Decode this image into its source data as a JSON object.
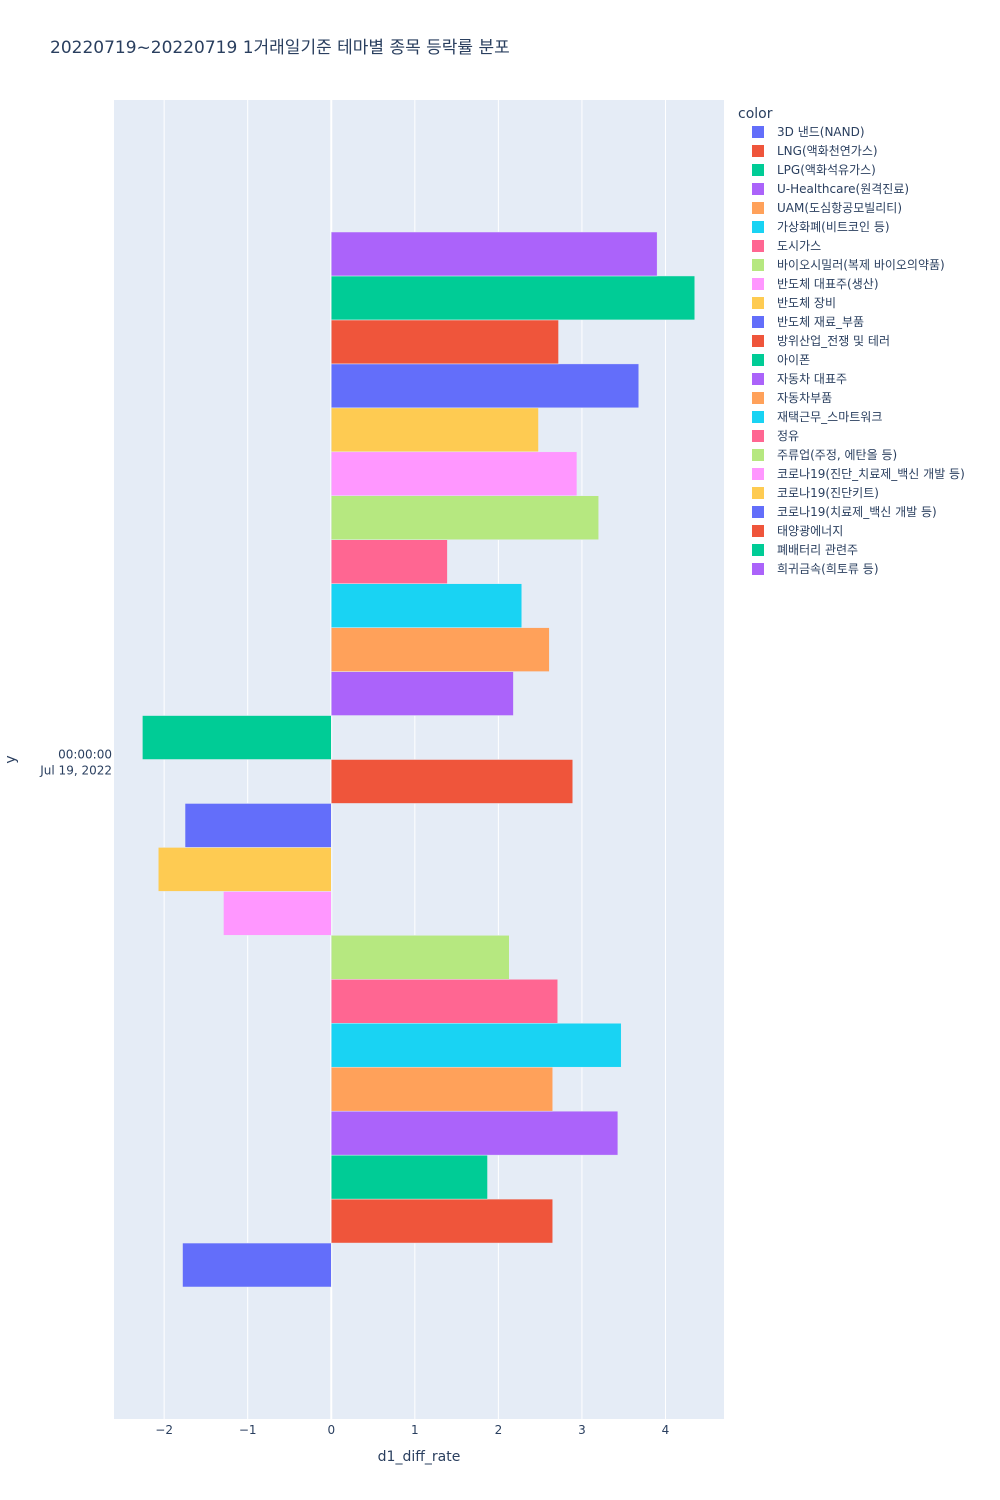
{
  "chart_data": {
    "type": "bar",
    "orientation": "horizontal",
    "title": "20220719~20220719 1거래일기준 테마별 종목 등락률 분포",
    "xlabel": "d1_diff_rate",
    "ylabel": "y",
    "xlim": [
      -2.6,
      4.7
    ],
    "xticks": [
      -2,
      -1,
      0,
      1,
      2,
      3,
      4
    ],
    "xtick_labels": [
      "−2",
      "−1",
      "0",
      "1",
      "2",
      "3",
      "4"
    ],
    "y_category_label": [
      "00:00:00",
      "Jul 19, 2022"
    ],
    "legend_title": "color",
    "series": [
      {
        "name": "3D 낸드(NAND)",
        "value": -1.78,
        "color": "#636efa"
      },
      {
        "name": "LNG(액화천연가스)",
        "value": 2.65,
        "color": "#EF553B"
      },
      {
        "name": "LPG(액화석유가스)",
        "value": 1.87,
        "color": "#00cc96"
      },
      {
        "name": "U-Healthcare(원격진료)",
        "value": 3.43,
        "color": "#ab63fa"
      },
      {
        "name": "UAM(도심항공모빌리티)",
        "value": 2.65,
        "color": "#FFA15A"
      },
      {
        "name": "가상화폐(비트코인 등)",
        "value": 3.47,
        "color": "#19d3f3"
      },
      {
        "name": "도시가스",
        "value": 2.71,
        "color": "#FF6692"
      },
      {
        "name": "바이오시밀러(복제 바이오의약품)",
        "value": 2.13,
        "color": "#B6E880"
      },
      {
        "name": "반도체 대표주(생산)",
        "value": -1.29,
        "color": "#FF97FF"
      },
      {
        "name": "반도체 장비",
        "value": -2.07,
        "color": "#FECB52"
      },
      {
        "name": "반도체 재료_부품",
        "value": -1.75,
        "color": "#636efa"
      },
      {
        "name": "방위산업_전쟁 및 테러",
        "value": 2.89,
        "color": "#EF553B"
      },
      {
        "name": "아이폰",
        "value": -2.26,
        "color": "#00cc96"
      },
      {
        "name": "자동차 대표주",
        "value": 2.18,
        "color": "#ab63fa"
      },
      {
        "name": "자동차부품",
        "value": 2.61,
        "color": "#FFA15A"
      },
      {
        "name": "재택근무_스마트워크",
        "value": 2.28,
        "color": "#19d3f3"
      },
      {
        "name": "정유",
        "value": 1.39,
        "color": "#FF6692"
      },
      {
        "name": "주류업(주정, 에탄올 등)",
        "value": 3.2,
        "color": "#B6E880"
      },
      {
        "name": "코로나19(진단_치료제_백신 개발 등)",
        "value": 2.94,
        "color": "#FF97FF"
      },
      {
        "name": "코로나19(진단키트)",
        "value": 2.48,
        "color": "#FECB52"
      },
      {
        "name": "코로나19(치료제_백신 개발 등)",
        "value": 3.68,
        "color": "#636efa"
      },
      {
        "name": "태양광에너지",
        "value": 2.72,
        "color": "#EF553B"
      },
      {
        "name": "폐배터리 관련주",
        "value": 4.35,
        "color": "#00cc96"
      },
      {
        "name": "희귀금속(희토류 등)",
        "value": 3.9,
        "color": "#ab63fa"
      }
    ]
  }
}
